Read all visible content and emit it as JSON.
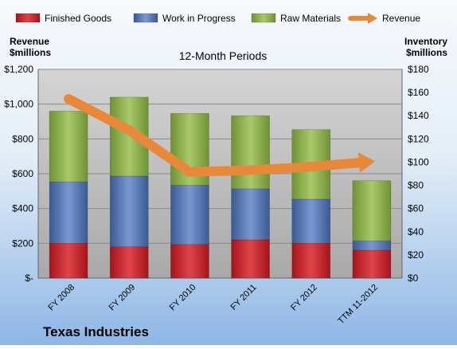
{
  "chart_data": {
    "type": "bar",
    "subtitle": "12-Month Periods",
    "footer_title": "Texas Industries",
    "ylabel_left": [
      "Revenue",
      "$millions"
    ],
    "ylabel_right": [
      "Inventory",
      "$millions"
    ],
    "categories": [
      "FY 2008",
      "FY 2009",
      "FY 2010",
      "FY 2011",
      "FY 2012",
      "TTM 11-2012"
    ],
    "left_axis": {
      "range": [
        0,
        1200
      ],
      "ticks": [
        0,
        200,
        400,
        600,
        800,
        1000,
        1200
      ],
      "tick_labels": [
        "$-",
        "$200",
        "$400",
        "$600",
        "$800",
        "$1,000",
        "$1,200"
      ]
    },
    "right_axis": {
      "range": [
        0,
        180
      ],
      "ticks": [
        0,
        20,
        40,
        60,
        80,
        100,
        120,
        140,
        160,
        180
      ],
      "tick_labels": [
        "$0",
        "$20",
        "$40",
        "$60",
        "$80",
        "$100",
        "$120",
        "$140",
        "$160",
        "$180"
      ]
    },
    "series": [
      {
        "name": "Finished Goods",
        "kind": "stacked-bar",
        "axis": "right",
        "color": "#c0282d",
        "values": [
          30,
          27,
          29,
          33,
          30,
          24
        ]
      },
      {
        "name": "Work in Progress",
        "kind": "stacked-bar",
        "axis": "right",
        "color": "#4f6fa8",
        "values": [
          53,
          61,
          51,
          44,
          38,
          8
        ]
      },
      {
        "name": "Raw Materials",
        "kind": "stacked-bar",
        "axis": "right",
        "color": "#8aad48",
        "values": [
          61,
          68,
          62,
          63,
          60,
          52
        ]
      },
      {
        "name": "Revenue",
        "kind": "line",
        "axis": "left",
        "color": "#e8893a",
        "values": [
          1030,
          850,
          610,
          620,
          640,
          670
        ]
      }
    ],
    "legend_position": "top",
    "grid": true
  }
}
